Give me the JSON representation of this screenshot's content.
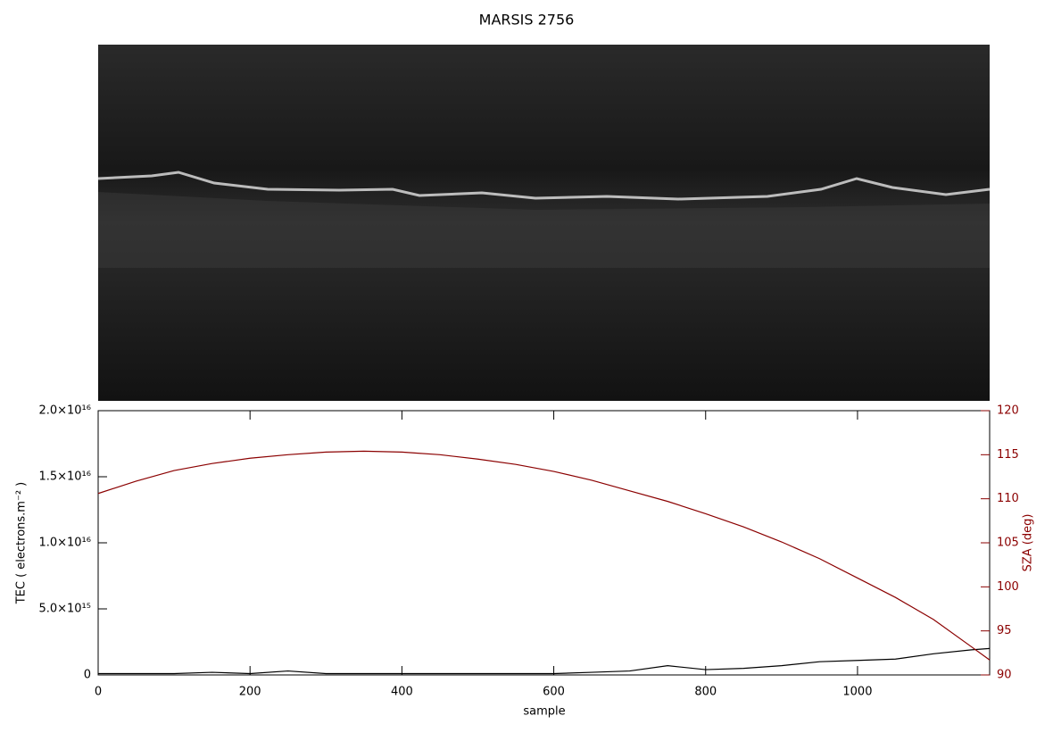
{
  "chart_data": {
    "type": "line",
    "title": "MARSIS 2756",
    "x_label": "sample",
    "y_label": "TEC ( electrons.m⁻² )",
    "y2_label": "SZA (deg)",
    "x": [
      0,
      50,
      100,
      150,
      200,
      250,
      300,
      350,
      400,
      450,
      500,
      550,
      600,
      650,
      700,
      750,
      800,
      850,
      900,
      950,
      1000,
      1050,
      1100,
      1150,
      1174
    ],
    "series": [
      {
        "name": "TEC",
        "color": "#000000",
        "values": [
          100000000000000.0,
          100000000000000.0,
          100000000000000.0,
          200000000000000.0,
          100000000000000.0,
          300000000000000.0,
          100000000000000.0,
          100000000000000.0,
          100000000000000.0,
          100000000000000.0,
          100000000000000.0,
          100000000000000.0,
          100000000000000.0,
          200000000000000.0,
          300000000000000.0,
          700000000000000.0,
          400000000000000.0,
          500000000000000.0,
          700000000000000.0,
          1000000000000000.0,
          1100000000000000.0,
          1200000000000000.0,
          1600000000000000.0,
          1900000000000000.0,
          2000000000000000.0
        ]
      },
      {
        "name": "SZA",
        "color": "#8b0000",
        "axis": "y2",
        "values": [
          110.6,
          112.0,
          113.2,
          114.0,
          114.6,
          115.0,
          115.3,
          115.4,
          115.3,
          115.0,
          114.5,
          113.9,
          113.1,
          112.1,
          110.9,
          109.7,
          108.3,
          106.8,
          105.1,
          103.2,
          101.0,
          98.8,
          96.3,
          93.2,
          91.7
        ]
      }
    ],
    "xlim": [
      0,
      1174
    ],
    "xticks": [
      0,
      200,
      400,
      600,
      800,
      1000
    ],
    "ylim": [
      0,
      2e+16
    ],
    "yticks": [
      0,
      {
        "value": 5000000000000000.0,
        "label": "5.0×10¹⁵"
      },
      {
        "value": 1e+16,
        "label": "1.0×10¹⁶"
      },
      {
        "value": 1.5e+16,
        "label": "1.5×10¹⁶"
      },
      {
        "value": 2e+16,
        "label": "2.0×10¹⁶"
      }
    ],
    "y2lim": [
      90,
      120
    ],
    "y2ticks": [
      90,
      95,
      100,
      105,
      110,
      115,
      120
    ],
    "y2_color": "#8b0000",
    "grid": false
  }
}
